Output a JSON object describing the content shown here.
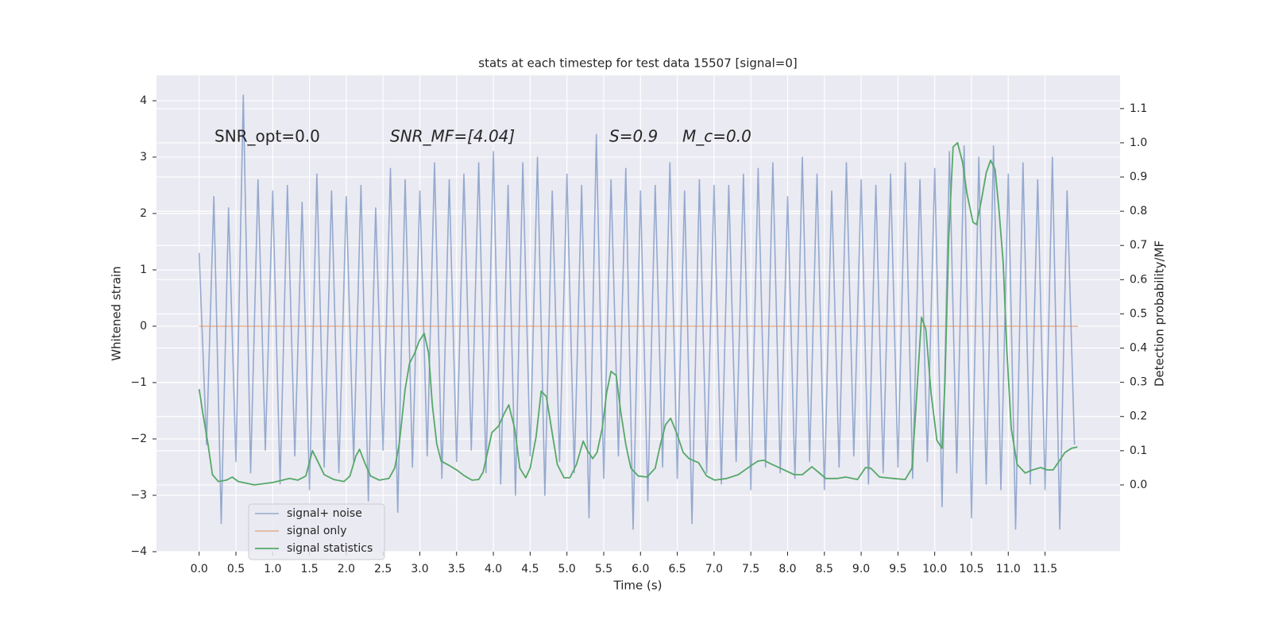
{
  "chart_data": {
    "type": "line",
    "title": "stats at each timestep for test data 15507 [signal=0]",
    "xlabel": "Time (s)",
    "ylabel": "Whitened strain",
    "y2label": "Detection probability/MF",
    "annotations": [
      "SNR_opt=0.0",
      "SNR_MF=[4.04]",
      "S=0.9",
      "M_c=0.0"
    ],
    "xlim": [
      -0.58,
      12.52
    ],
    "ylim": [
      -4.0,
      4.45
    ],
    "y2lim": [
      -0.195,
      1.197
    ],
    "xticks": [
      {
        "value": 0,
        "label": "0.0"
      },
      0.5,
      {
        "value": 1,
        "label": "1.0"
      },
      1.5,
      {
        "value": 2,
        "label": "2.0"
      },
      2.5,
      {
        "value": 3,
        "label": "3.0"
      },
      3.5,
      {
        "value": 4,
        "label": "4.0"
      },
      4.5,
      {
        "value": 5,
        "label": "5.0"
      },
      5.5,
      {
        "value": 6,
        "label": "6.0"
      },
      6.5,
      {
        "value": 7,
        "label": "7.0"
      },
      7.5,
      {
        "value": 8,
        "label": "8.0"
      },
      8.5,
      {
        "value": 9,
        "label": "9.0"
      },
      9.5,
      {
        "value": 10,
        "label": "10.0"
      },
      10.5,
      {
        "value": 11,
        "label": "11.0"
      },
      11.5
    ],
    "yticks": [
      {
        "value": -4,
        "label": "−4"
      },
      {
        "value": -3,
        "label": "−3"
      },
      {
        "value": -2,
        "label": "−2"
      },
      {
        "value": -1,
        "label": "−1"
      },
      0,
      1,
      2,
      3,
      4
    ],
    "y2ticks": [
      {
        "value": 0,
        "label": "0.0"
      },
      0.1,
      0.2,
      0.3,
      0.4,
      0.5,
      0.6,
      0.7,
      0.8,
      0.9,
      {
        "value": 1,
        "label": "1.0"
      },
      1.1
    ],
    "grid": true,
    "legend": "lower left",
    "series": [
      {
        "name": "signal+ noise",
        "color": "#4c72b0",
        "x": [
          0.0,
          0.1,
          0.2,
          0.3,
          0.4,
          0.5,
          0.6,
          0.7,
          0.8,
          0.9,
          1.0,
          1.1,
          1.2,
          1.3,
          1.4,
          1.5,
          1.6,
          1.7,
          1.8,
          1.9,
          2.0,
          2.1,
          2.2,
          2.3,
          2.4,
          2.5,
          2.6,
          2.7,
          2.8,
          2.9,
          3.0,
          3.1,
          3.2,
          3.3,
          3.4,
          3.5,
          3.6,
          3.7,
          3.8,
          3.9,
          4.0,
          4.1,
          4.2,
          4.3,
          4.4,
          4.5,
          4.6,
          4.7,
          4.8,
          4.9,
          5.0,
          5.1,
          5.2,
          5.3,
          5.4,
          5.5,
          5.6,
          5.7,
          5.8,
          5.9,
          6.0,
          6.1,
          6.2,
          6.3,
          6.4,
          6.5,
          6.6,
          6.7,
          6.8,
          6.9,
          7.0,
          7.1,
          7.2,
          7.3,
          7.4,
          7.5,
          7.6,
          7.7,
          7.8,
          7.9,
          8.0,
          8.1,
          8.2,
          8.3,
          8.4,
          8.5,
          8.6,
          8.7,
          8.8,
          8.9,
          9.0,
          9.1,
          9.2,
          9.3,
          9.4,
          9.5,
          9.6,
          9.7,
          9.8,
          9.9,
          10.0,
          10.1,
          10.2,
          10.3,
          10.4,
          10.5,
          10.6,
          10.7,
          10.8,
          10.9,
          11.0,
          11.1,
          11.2,
          11.3,
          11.4,
          11.5,
          11.6,
          11.7,
          11.8,
          11.9
        ],
        "values": [
          1.3,
          -2.1,
          2.3,
          -3.5,
          2.1,
          -2.4,
          4.1,
          -2.6,
          2.6,
          -2.2,
          2.4,
          -2.8,
          2.5,
          -2.3,
          2.2,
          -2.9,
          2.7,
          -2.5,
          2.4,
          -2.6,
          2.3,
          -2.4,
          2.5,
          -3.1,
          2.1,
          -2.2,
          2.8,
          -3.3,
          2.6,
          -2.5,
          2.4,
          -2.3,
          2.9,
          -2.7,
          2.6,
          -2.4,
          2.7,
          -2.2,
          2.9,
          -2.6,
          3.1,
          -2.8,
          2.5,
          -3.0,
          2.9,
          -2.3,
          3.0,
          -3.0,
          2.4,
          -2.4,
          2.7,
          -2.6,
          2.5,
          -3.4,
          3.4,
          -2.7,
          2.6,
          -2.3,
          2.8,
          -3.6,
          2.4,
          -3.1,
          2.5,
          -2.5,
          2.9,
          -2.7,
          2.4,
          -3.5,
          2.6,
          -2.6,
          2.5,
          -2.8,
          2.5,
          -2.4,
          2.7,
          -2.9,
          2.8,
          -2.5,
          2.9,
          -2.6,
          2.3,
          -2.7,
          3.0,
          -2.4,
          2.7,
          -2.9,
          2.4,
          -2.5,
          2.9,
          -2.3,
          2.6,
          -2.8,
          2.5,
          -2.6,
          2.7,
          -2.5,
          2.9,
          -2.7,
          2.6,
          -2.4,
          2.8,
          -3.2,
          3.1,
          -2.6,
          3.2,
          -3.4,
          3.0,
          -2.8,
          3.2,
          -2.9,
          2.7,
          -3.6,
          2.9,
          -2.8,
          2.6,
          -2.9,
          3.0,
          -3.6,
          2.4,
          -2.1
        ]
      },
      {
        "name": "signal only",
        "color": "#dd8452",
        "x": [
          0.0,
          11.95
        ],
        "values": [
          0,
          0
        ]
      },
      {
        "name": "signal statistics",
        "color": "#55a868",
        "axis": "y2",
        "x": [
          0.0,
          0.05,
          0.12,
          0.18,
          0.26,
          0.37,
          0.45,
          0.53,
          0.75,
          1.0,
          1.23,
          1.34,
          1.45,
          1.54,
          1.61,
          1.7,
          1.83,
          1.97,
          2.05,
          2.13,
          2.18,
          2.26,
          2.33,
          2.45,
          2.58,
          2.66,
          2.72,
          2.8,
          2.86,
          2.93,
          2.99,
          3.06,
          3.12,
          3.17,
          3.23,
          3.29,
          3.39,
          3.5,
          3.61,
          3.71,
          3.8,
          3.86,
          3.92,
          3.98,
          4.07,
          4.15,
          4.21,
          4.29,
          4.36,
          4.44,
          4.5,
          4.58,
          4.65,
          4.72,
          4.79,
          4.87,
          4.96,
          5.04,
          5.13,
          5.22,
          5.28,
          5.35,
          5.41,
          5.48,
          5.54,
          5.6,
          5.67,
          5.73,
          5.8,
          5.87,
          5.97,
          6.09,
          6.2,
          6.27,
          6.34,
          6.41,
          6.49,
          6.58,
          6.66,
          6.79,
          6.9,
          7.01,
          7.17,
          7.33,
          7.5,
          7.6,
          7.68,
          7.76,
          7.93,
          8.09,
          8.2,
          8.33,
          8.42,
          8.52,
          8.68,
          8.79,
          8.95,
          9.06,
          9.13,
          9.25,
          9.44,
          9.6,
          9.69,
          9.74,
          9.82,
          9.88,
          9.95,
          10.03,
          10.1,
          10.14,
          10.19,
          10.25,
          10.31,
          10.38,
          10.44,
          10.52,
          10.57,
          10.64,
          10.7,
          10.76,
          10.82,
          10.87,
          10.93,
          10.98,
          11.04,
          11.12,
          11.23,
          11.33,
          11.44,
          11.53,
          11.61,
          11.7,
          11.77,
          11.86,
          11.94
        ],
        "values": [
          0.28,
          0.21,
          0.12,
          0.03,
          0.01,
          0.014,
          0.023,
          0.01,
          0.0,
          0.007,
          0.019,
          0.014,
          0.026,
          0.1,
          0.07,
          0.03,
          0.016,
          0.01,
          0.026,
          0.084,
          0.104,
          0.06,
          0.026,
          0.014,
          0.019,
          0.05,
          0.12,
          0.28,
          0.355,
          0.385,
          0.42,
          0.443,
          0.385,
          0.235,
          0.12,
          0.07,
          0.058,
          0.044,
          0.026,
          0.014,
          0.016,
          0.037,
          0.095,
          0.153,
          0.172,
          0.21,
          0.234,
          0.165,
          0.049,
          0.021,
          0.049,
          0.14,
          0.274,
          0.258,
          0.165,
          0.06,
          0.021,
          0.021,
          0.06,
          0.128,
          0.1,
          0.077,
          0.095,
          0.165,
          0.27,
          0.332,
          0.32,
          0.216,
          0.118,
          0.049,
          0.026,
          0.023,
          0.049,
          0.118,
          0.176,
          0.195,
          0.153,
          0.095,
          0.077,
          0.065,
          0.026,
          0.014,
          0.019,
          0.03,
          0.056,
          0.07,
          0.072,
          0.063,
          0.046,
          0.03,
          0.03,
          0.053,
          0.037,
          0.019,
          0.019,
          0.023,
          0.016,
          0.051,
          0.049,
          0.023,
          0.019,
          0.016,
          0.049,
          0.21,
          0.49,
          0.455,
          0.27,
          0.13,
          0.107,
          0.304,
          0.72,
          0.988,
          1.0,
          0.942,
          0.85,
          0.768,
          0.761,
          0.838,
          0.912,
          0.949,
          0.923,
          0.814,
          0.652,
          0.397,
          0.165,
          0.06,
          0.035,
          0.044,
          0.051,
          0.044,
          0.044,
          0.072,
          0.095,
          0.107,
          0.111
        ]
      }
    ]
  }
}
